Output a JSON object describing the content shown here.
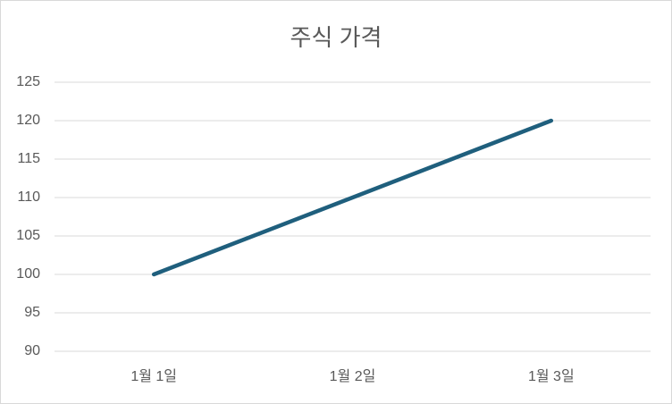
{
  "chart_data": {
    "type": "line",
    "title": "주식 가격",
    "categories": [
      "1월 1일",
      "1월 2일",
      "1월 3일"
    ],
    "values": [
      100,
      110,
      120
    ],
    "color": "#1f5f7d",
    "ylim": [
      90,
      125
    ],
    "yticks": [
      90,
      95,
      100,
      105,
      110,
      115,
      120,
      125
    ],
    "grid": true
  }
}
